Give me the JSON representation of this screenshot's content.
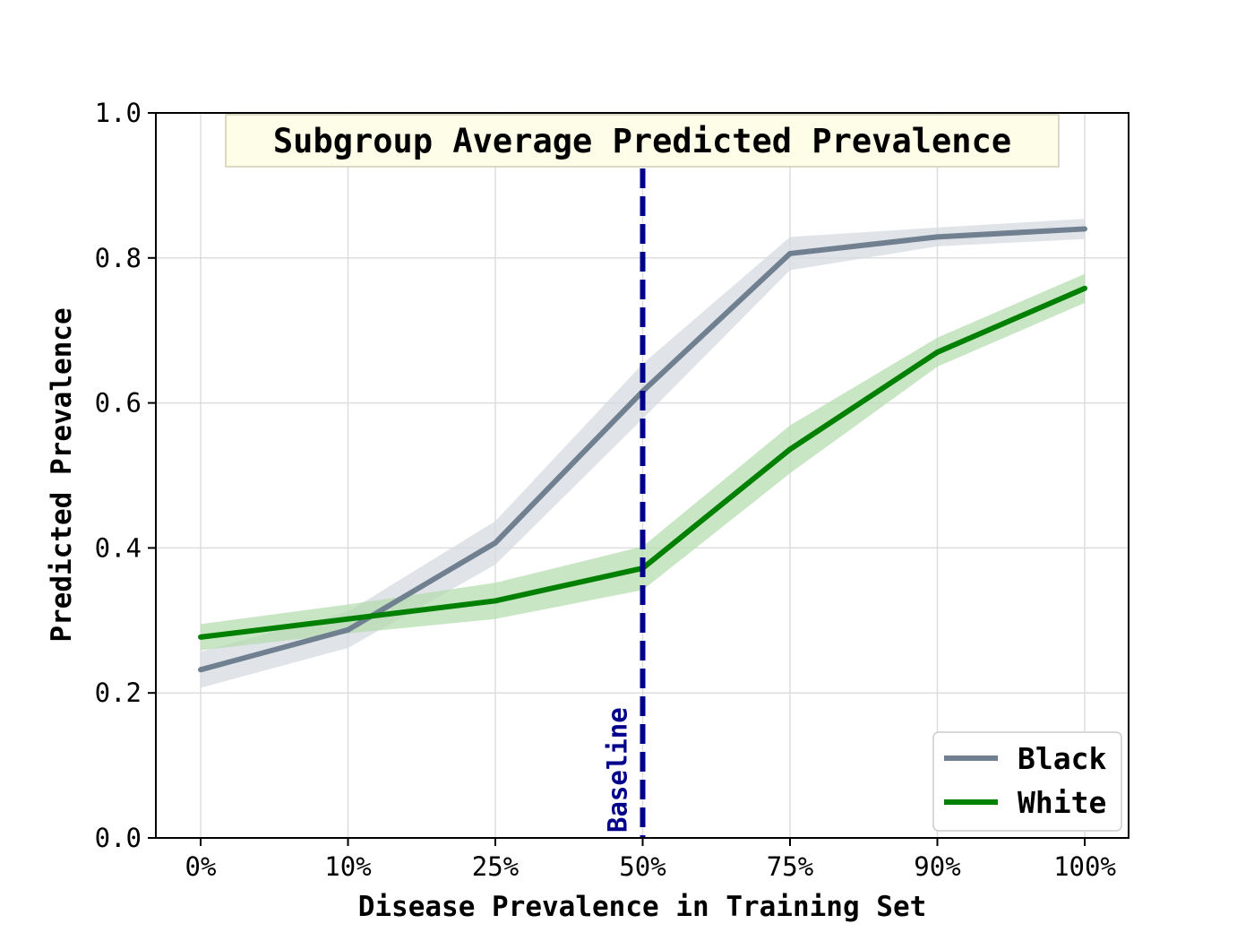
{
  "chart_data": {
    "type": "line",
    "title": "Subgroup Average Predicted Prevalence",
    "xlabel": "Disease Prevalence in Training Set",
    "ylabel": "Predicted Prevalence",
    "categories": [
      "0%",
      "10%",
      "25%",
      "50%",
      "75%",
      "90%",
      "100%"
    ],
    "ylim": [
      0,
      1.0
    ],
    "yticks": [
      "0.0",
      "0.2",
      "0.4",
      "0.6",
      "0.8",
      "1.0"
    ],
    "grid": true,
    "legend_position": "bottom-right",
    "series": [
      {
        "name": "Black",
        "color": "#708090",
        "band_color": "#d5dbe0",
        "values": [
          0.232,
          0.287,
          0.407,
          0.616,
          0.806,
          0.829,
          0.84
        ],
        "lower": [
          0.207,
          0.262,
          0.377,
          0.578,
          0.783,
          0.816,
          0.826
        ],
        "upper": [
          0.257,
          0.312,
          0.437,
          0.654,
          0.829,
          0.842,
          0.854
        ]
      },
      {
        "name": "White",
        "color": "#008000",
        "band_color": "#b5dcb0",
        "values": [
          0.277,
          0.302,
          0.327,
          0.372,
          0.536,
          0.67,
          0.758
        ],
        "lower": [
          0.259,
          0.282,
          0.302,
          0.342,
          0.503,
          0.65,
          0.738
        ],
        "upper": [
          0.295,
          0.322,
          0.352,
          0.402,
          0.569,
          0.69,
          0.778
        ]
      }
    ],
    "baseline": {
      "label": "Baseline",
      "category": "50%",
      "color": "#00008b"
    }
  }
}
